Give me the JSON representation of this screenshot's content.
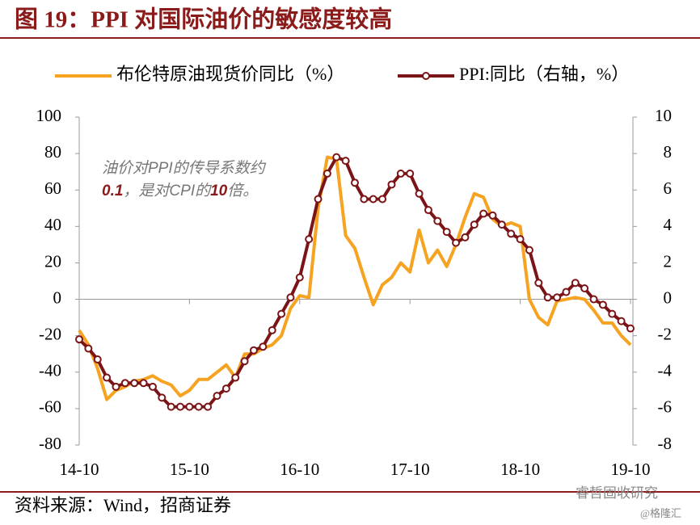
{
  "title": "图 19：PPI 对国际油价的敏感度较高",
  "source": "资料来源：Wind，招商证券",
  "watermark": [
    "睿哲固收研究",
    "@格隆汇"
  ],
  "chart_data": {
    "type": "line",
    "categories": [
      "14-10",
      null,
      null,
      null,
      null,
      null,
      null,
      null,
      null,
      null,
      null,
      null,
      "15-10",
      null,
      null,
      null,
      null,
      null,
      null,
      null,
      null,
      null,
      null,
      null,
      "16-10",
      null,
      null,
      null,
      null,
      null,
      null,
      null,
      null,
      null,
      null,
      null,
      "17-10",
      null,
      null,
      null,
      null,
      null,
      null,
      null,
      null,
      null,
      null,
      null,
      "18-10",
      null,
      null,
      null,
      null,
      null,
      null,
      null,
      null,
      null,
      null,
      null,
      "19-10"
    ],
    "annotation": [
      [
        "油价对PPI的传导系数约"
      ],
      [
        "0.1",
        "，是对CPI的",
        "10",
        "倍。"
      ]
    ],
    "series": [
      {
        "name": "布伦特原油现货价同比（%）",
        "color": "#f5a320",
        "axis": "y",
        "marker": false,
        "values": [
          -17,
          -25,
          -38,
          -55,
          -50,
          -48,
          -45,
          -44,
          -42,
          -45,
          -47,
          -53,
          -50,
          -44,
          -44,
          -40,
          -36,
          -43,
          -30,
          -30,
          -27,
          -25,
          -20,
          -5,
          2,
          1,
          50,
          78,
          77,
          35,
          28,
          12,
          -3,
          8,
          12,
          20,
          15,
          38,
          20,
          27,
          18,
          30,
          45,
          58,
          56,
          44,
          40,
          42,
          40,
          0,
          -10,
          -14,
          -1,
          0,
          1,
          0,
          -6,
          -13,
          -13,
          -20,
          -25
        ]
      },
      {
        "name": "PPI:同比（右轴，%）",
        "color": "#7b1416",
        "axis": "y2",
        "marker": true,
        "values": [
          -2.2,
          -2.7,
          -3.3,
          -4.3,
          -4.8,
          -4.6,
          -4.6,
          -4.6,
          -4.8,
          -5.4,
          -5.9,
          -5.9,
          -5.9,
          -5.9,
          -5.9,
          -5.3,
          -4.9,
          -4.3,
          -3.4,
          -2.8,
          -2.6,
          -1.7,
          -0.8,
          0.1,
          1.2,
          3.3,
          5.5,
          6.9,
          7.8,
          7.6,
          6.4,
          5.5,
          5.5,
          5.5,
          6.3,
          6.9,
          6.9,
          5.8,
          4.9,
          4.3,
          3.7,
          3.1,
          3.4,
          4.1,
          4.7,
          4.6,
          4.1,
          3.6,
          3.3,
          2.7,
          0.9,
          0.1,
          0.1,
          0.4,
          0.9,
          0.6,
          0.0,
          -0.3,
          -0.8,
          -1.2,
          -1.6
        ]
      }
    ],
    "ylim": [
      -80,
      100
    ],
    "yticks": [
      100,
      80,
      60,
      40,
      20,
      0,
      -20,
      -40,
      -60,
      -80
    ],
    "y2lim": [
      -8,
      10
    ],
    "y2ticks": [
      10,
      8,
      6,
      4,
      2,
      0,
      -2,
      -4,
      -6,
      -8
    ]
  }
}
